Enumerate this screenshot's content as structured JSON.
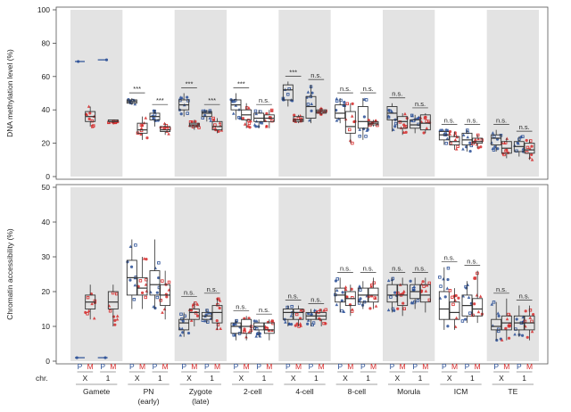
{
  "colors": {
    "paternal": "#2a4f96",
    "maternal": "#d62a2a",
    "box": "#333333",
    "band": "#e3e3e3"
  },
  "labels": {
    "chr_label": "chr.",
    "paternal_short": "P",
    "maternal_short": "M",
    "chr_x": "X",
    "chr_1": "1"
  },
  "chart_data": [
    {
      "type": "box",
      "ylabel": "DNA methylation level (%)",
      "ylim": [
        0,
        100
      ],
      "yticks": [
        0,
        20,
        40,
        60,
        80,
        100
      ],
      "stages": [
        "Gamete",
        "PN",
        "Zygote",
        "2-cell",
        "4-cell",
        "8-cell",
        "Morula",
        "ICM",
        "TE"
      ],
      "boxes": [
        [
          [
            69,
            69,
            69,
            69,
            69
          ],
          [
            30,
            33,
            36,
            39,
            42
          ],
          [
            70,
            70,
            70,
            70,
            70
          ],
          [
            32,
            33,
            33,
            34,
            34
          ]
        ],
        [
          [
            43,
            44,
            45,
            46,
            47
          ],
          [
            22,
            26,
            28,
            32,
            36
          ],
          [
            30,
            34,
            36,
            38,
            40
          ],
          [
            25,
            27,
            28,
            30,
            32
          ]
        ],
        [
          [
            36,
            40,
            43,
            46,
            50
          ],
          [
            28,
            30,
            31,
            32,
            34
          ],
          [
            33,
            36,
            38,
            39,
            40
          ],
          [
            26,
            28,
            30,
            33,
            35
          ]
        ],
        [
          [
            34,
            40,
            43,
            46,
            50
          ],
          [
            29,
            34,
            37,
            40,
            44
          ],
          [
            29,
            33,
            35,
            38,
            40
          ],
          [
            29,
            33,
            35,
            37,
            40
          ]
        ],
        [
          [
            42,
            46,
            52,
            55,
            57
          ],
          [
            32,
            33,
            34,
            36,
            37
          ],
          [
            32,
            35,
            42,
            48,
            55
          ],
          [
            37,
            38,
            39,
            40,
            41
          ]
        ],
        [
          [
            32,
            35,
            38,
            43,
            47
          ],
          [
            20,
            26,
            30,
            39,
            44
          ],
          [
            22,
            29,
            33,
            42,
            47
          ],
          [
            30,
            31,
            32,
            33,
            34
          ]
        ],
        [
          [
            27,
            34,
            38,
            42,
            44
          ],
          [
            25,
            29,
            33,
            36,
            38
          ],
          [
            26,
            29,
            31,
            34,
            37
          ],
          [
            26,
            28,
            32,
            37,
            38
          ]
        ],
        [
          [
            19,
            22,
            25,
            27,
            28
          ],
          [
            16,
            19,
            21,
            24,
            27
          ],
          [
            15,
            19,
            22,
            26,
            28
          ],
          [
            17,
            20,
            21,
            23,
            25
          ]
        ],
        [
          [
            15,
            19,
            23,
            25,
            28
          ],
          [
            11,
            14,
            17,
            21,
            23
          ],
          [
            12,
            15,
            18,
            21,
            24
          ],
          [
            10,
            14,
            16,
            20,
            22
          ]
        ]
      ],
      "significance": [
        [
          "",
          ""
        ],
        [
          "***",
          "***"
        ],
        [
          "***",
          "***"
        ],
        [
          "***",
          "n.s."
        ],
        [
          "***",
          "n.s."
        ],
        [
          "n.s.",
          "n.s."
        ],
        [
          "n.s.",
          "n.s."
        ],
        [
          "n.s.",
          "n.s."
        ],
        [
          "n.s.",
          "n.s."
        ]
      ]
    },
    {
      "type": "box",
      "ylabel": "Chromatin accessibility (%)",
      "ylim": [
        0,
        50
      ],
      "yticks": [
        0,
        10,
        20,
        30,
        40,
        50
      ],
      "stages": [
        "Gamete",
        "PN",
        "Zygote",
        "2-cell",
        "4-cell",
        "8-cell",
        "Morula",
        "ICM",
        "TE"
      ],
      "xlabels": [
        "Gamete",
        "PN\n(early)",
        "Zygote\n(late)",
        "2-cell",
        "4-cell",
        "8-cell",
        "Morula",
        "ICM",
        "TE"
      ],
      "boxes": [
        [
          [
            1,
            1,
            1,
            1,
            1
          ],
          [
            12,
            15,
            17,
            19,
            22
          ],
          [
            1,
            1,
            1,
            1,
            1
          ],
          [
            10,
            15,
            17,
            20,
            22
          ]
        ],
        [
          [
            15,
            19,
            24,
            29,
            35
          ],
          [
            15,
            19,
            21,
            24,
            30
          ],
          [
            15,
            19,
            22,
            26,
            35
          ],
          [
            12,
            16,
            19,
            22,
            26
          ]
        ],
        [
          [
            7,
            9,
            11,
            12,
            14
          ],
          [
            10,
            12,
            14,
            15,
            17
          ],
          [
            11,
            12,
            13,
            14,
            15
          ],
          [
            9,
            11,
            14,
            16,
            18
          ]
        ],
        [
          [
            6,
            8,
            10,
            11,
            12
          ],
          [
            6,
            8,
            10,
            12,
            13
          ],
          [
            7,
            9,
            10,
            11,
            12
          ],
          [
            6,
            8,
            9,
            11,
            12
          ]
        ],
        [
          [
            10,
            12,
            14,
            15,
            16
          ],
          [
            10,
            12,
            14,
            15,
            16
          ],
          [
            10,
            12,
            13,
            14,
            15
          ],
          [
            10,
            12,
            13,
            14,
            15
          ]
        ],
        [
          [
            14,
            17,
            19,
            21,
            24
          ],
          [
            13,
            16,
            18,
            20,
            22
          ],
          [
            15,
            17,
            19,
            21,
            23
          ],
          [
            15,
            17,
            19,
            21,
            24
          ]
        ],
        [
          [
            14,
            17,
            19,
            22,
            24
          ],
          [
            13,
            16,
            19,
            22,
            24
          ],
          [
            15,
            18,
            20,
            22,
            24
          ],
          [
            14,
            17,
            19,
            22,
            24
          ]
        ],
        [
          [
            9,
            12,
            15,
            20,
            27
          ],
          [
            9,
            12,
            14,
            17,
            21
          ],
          [
            11,
            13,
            16,
            19,
            23
          ],
          [
            11,
            13,
            15,
            18,
            26
          ]
        ],
        [
          [
            6,
            9,
            10,
            12,
            17
          ],
          [
            6,
            9,
            11,
            13,
            18
          ],
          [
            7,
            9,
            11,
            13,
            16
          ],
          [
            6,
            9,
            11,
            13,
            16
          ]
        ]
      ],
      "significance": [
        [
          "",
          ""
        ],
        [
          "",
          ""
        ],
        [
          "n.s.",
          "n.s."
        ],
        [
          "n.s.",
          "n.s."
        ],
        [
          "n.s.",
          "n.s."
        ],
        [
          "n.s.",
          "n.s."
        ],
        [
          "n.s.",
          "n.s."
        ],
        [
          "n.s.",
          "n.s."
        ],
        [
          "n.s.",
          "n.s."
        ]
      ]
    }
  ]
}
